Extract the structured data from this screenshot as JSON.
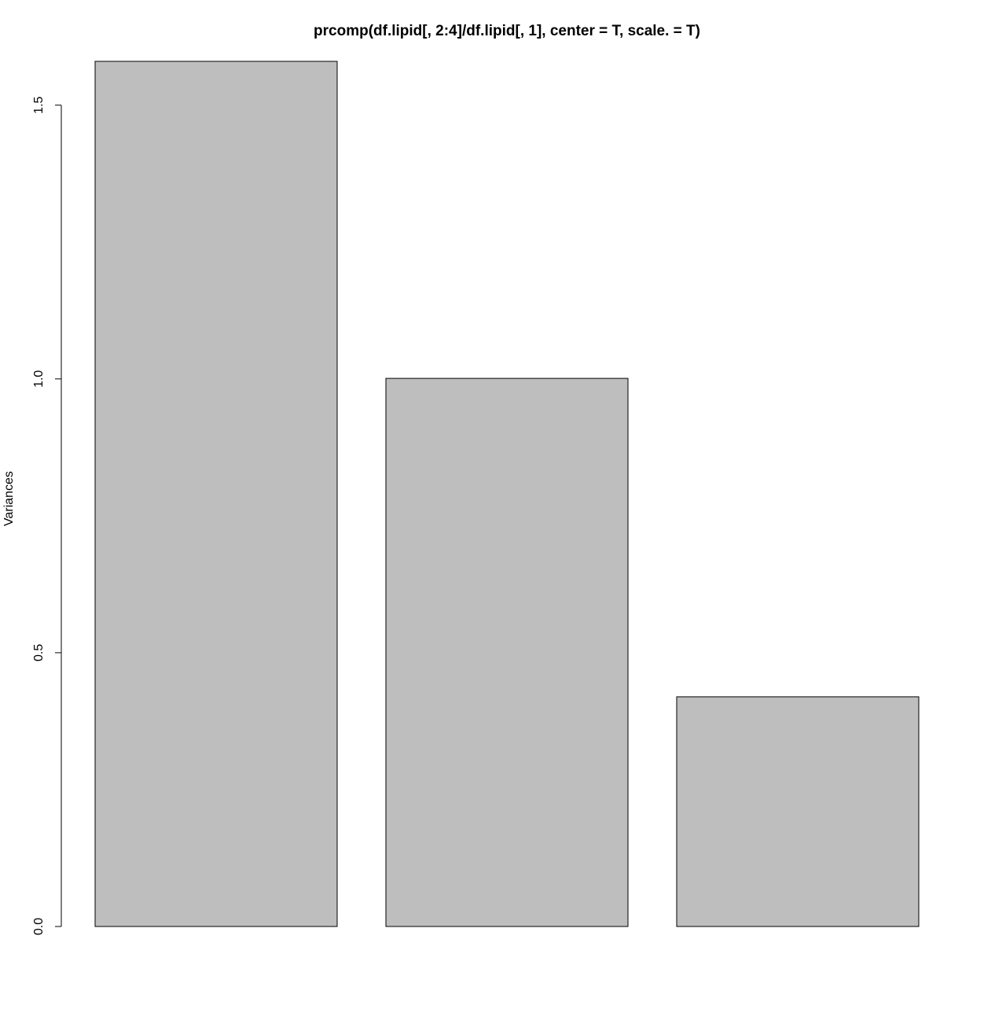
{
  "chart_data": {
    "type": "bar",
    "title": "prcomp(df.lipid[, 2:4]/df.lipid[, 1], center = T, scale. = T)",
    "y_label": "Variances",
    "categories": [
      null,
      null,
      null
    ],
    "values": [
      1.58,
      1.001,
      0.4195
    ],
    "color": "#bebebe",
    "ylim": [
      0,
      1.58
    ],
    "yticks": [
      0.0,
      0.5,
      1.0,
      1.5
    ],
    "grid": false
  }
}
